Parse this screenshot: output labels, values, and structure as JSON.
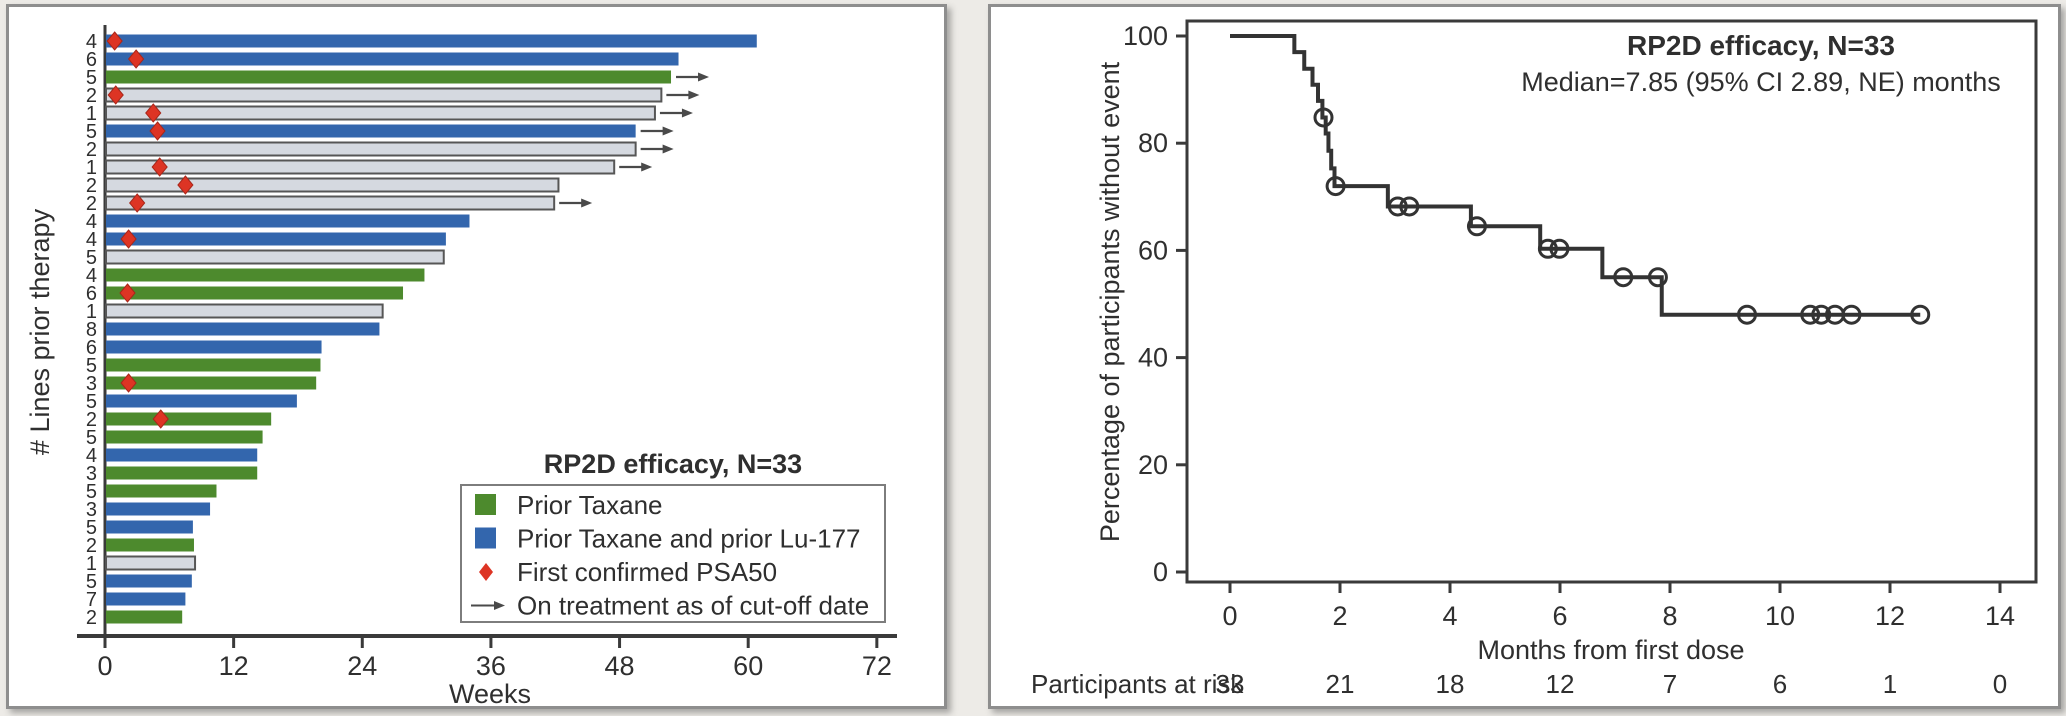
{
  "page": {
    "background": "#edebe7",
    "panel_bg": "#ffffff",
    "panel_border": "#8e8e8e"
  },
  "chart_data": [
    {
      "id": "swimmer-plot",
      "type": "bar",
      "orientation": "horizontal",
      "xlabel": "Weeks",
      "ylabel": "# Lines prior therapy",
      "x_ticks": [
        0,
        12,
        24,
        36,
        48,
        60,
        72
      ],
      "xlim": [
        0,
        75
      ],
      "grid": false,
      "axis_color": "#3a3a3a",
      "colors": {
        "prior_taxane": "#4d8a2d",
        "prior_taxane_lu177": "#3366ad",
        "other_fill": "#d5d9e0",
        "other_stroke": "#565656",
        "psa50": "#dd3424",
        "psa50_edge": "#a8271a",
        "arrow": "#4a4a4a"
      },
      "legend": {
        "title": "RP2D efficacy, N=33",
        "position": "lower-right",
        "items": [
          {
            "swatch": "green-square",
            "label": "Prior Taxane",
            "color": "#4d8a2d"
          },
          {
            "swatch": "blue-square",
            "label": "Prior Taxane and prior Lu-177",
            "color": "#3366ad"
          },
          {
            "swatch": "red-diamond",
            "label": "First confirmed PSA50",
            "color": "#dd3424"
          },
          {
            "swatch": "arrow",
            "label": "On treatment as of cut-off date",
            "color": "#4a4a4a"
          }
        ]
      },
      "bars": [
        {
          "lines_prior_therapy": 4,
          "weeks": 60.8,
          "group": "taxane_lu177",
          "psa50_week": 0.9,
          "ongoing": false
        },
        {
          "lines_prior_therapy": 6,
          "weeks": 53.5,
          "group": "taxane_lu177",
          "psa50_week": 2.9,
          "ongoing": false
        },
        {
          "lines_prior_therapy": 5,
          "weeks": 52.8,
          "group": "taxane",
          "psa50_week": null,
          "ongoing": true
        },
        {
          "lines_prior_therapy": 2,
          "weeks": 51.9,
          "group": "other",
          "psa50_week": 1.0,
          "ongoing": true
        },
        {
          "lines_prior_therapy": 1,
          "weeks": 51.3,
          "group": "other",
          "psa50_week": 4.5,
          "ongoing": true
        },
        {
          "lines_prior_therapy": 5,
          "weeks": 49.5,
          "group": "taxane_lu177",
          "psa50_week": 4.9,
          "ongoing": true
        },
        {
          "lines_prior_therapy": 2,
          "weeks": 49.5,
          "group": "other",
          "psa50_week": null,
          "ongoing": true
        },
        {
          "lines_prior_therapy": 1,
          "weeks": 47.5,
          "group": "other",
          "psa50_week": 5.1,
          "ongoing": true
        },
        {
          "lines_prior_therapy": 2,
          "weeks": 42.3,
          "group": "other",
          "psa50_week": 7.5,
          "ongoing": false
        },
        {
          "lines_prior_therapy": 2,
          "weeks": 41.9,
          "group": "other",
          "psa50_week": 3.0,
          "ongoing": true
        },
        {
          "lines_prior_therapy": 4,
          "weeks": 34.0,
          "group": "taxane_lu177",
          "psa50_week": null,
          "ongoing": false
        },
        {
          "lines_prior_therapy": 4,
          "weeks": 31.8,
          "group": "taxane_lu177",
          "psa50_week": 2.2,
          "ongoing": false
        },
        {
          "lines_prior_therapy": 5,
          "weeks": 31.6,
          "group": "other",
          "psa50_week": null,
          "ongoing": false
        },
        {
          "lines_prior_therapy": 4,
          "weeks": 29.8,
          "group": "taxane",
          "psa50_week": null,
          "ongoing": false
        },
        {
          "lines_prior_therapy": 6,
          "weeks": 27.8,
          "group": "taxane",
          "psa50_week": 2.1,
          "ongoing": false
        },
        {
          "lines_prior_therapy": 1,
          "weeks": 25.9,
          "group": "other",
          "psa50_week": null,
          "ongoing": false
        },
        {
          "lines_prior_therapy": 8,
          "weeks": 25.6,
          "group": "taxane_lu177",
          "psa50_week": null,
          "ongoing": false
        },
        {
          "lines_prior_therapy": 6,
          "weeks": 20.2,
          "group": "taxane_lu177",
          "psa50_week": null,
          "ongoing": false
        },
        {
          "lines_prior_therapy": 5,
          "weeks": 20.1,
          "group": "taxane",
          "psa50_week": null,
          "ongoing": false
        },
        {
          "lines_prior_therapy": 3,
          "weeks": 19.7,
          "group": "taxane",
          "psa50_week": 2.2,
          "ongoing": false
        },
        {
          "lines_prior_therapy": 5,
          "weeks": 17.9,
          "group": "taxane_lu177",
          "psa50_week": null,
          "ongoing": false
        },
        {
          "lines_prior_therapy": 2,
          "weeks": 15.5,
          "group": "taxane",
          "psa50_week": 5.2,
          "ongoing": false
        },
        {
          "lines_prior_therapy": 5,
          "weeks": 14.7,
          "group": "taxane",
          "psa50_week": null,
          "ongoing": false
        },
        {
          "lines_prior_therapy": 4,
          "weeks": 14.2,
          "group": "taxane_lu177",
          "psa50_week": null,
          "ongoing": false
        },
        {
          "lines_prior_therapy": 3,
          "weeks": 14.2,
          "group": "taxane",
          "psa50_week": null,
          "ongoing": false
        },
        {
          "lines_prior_therapy": 5,
          "weeks": 10.4,
          "group": "taxane",
          "psa50_week": null,
          "ongoing": false
        },
        {
          "lines_prior_therapy": 3,
          "weeks": 9.8,
          "group": "taxane_lu177",
          "psa50_week": null,
          "ongoing": false
        },
        {
          "lines_prior_therapy": 5,
          "weeks": 8.2,
          "group": "taxane_lu177",
          "psa50_week": null,
          "ongoing": false
        },
        {
          "lines_prior_therapy": 2,
          "weeks": 8.3,
          "group": "taxane",
          "psa50_week": null,
          "ongoing": false
        },
        {
          "lines_prior_therapy": 1,
          "weeks": 8.4,
          "group": "other",
          "psa50_week": null,
          "ongoing": false
        },
        {
          "lines_prior_therapy": 5,
          "weeks": 8.1,
          "group": "taxane_lu177",
          "psa50_week": null,
          "ongoing": false
        },
        {
          "lines_prior_therapy": 7,
          "weeks": 7.5,
          "group": "taxane_lu177",
          "psa50_week": null,
          "ongoing": false
        },
        {
          "lines_prior_therapy": 2,
          "weeks": 7.2,
          "group": "taxane",
          "psa50_week": null,
          "ongoing": false
        }
      ]
    },
    {
      "id": "km-plot",
      "type": "line",
      "subtype": "kaplan-meier-step",
      "title": "RP2D efficacy, N=33",
      "subtitle": "Median=7.85 (95% CI 2.89, NE) months",
      "xlabel": "Months from first dose",
      "ylabel": "Percentage of participants without event",
      "x_ticks": [
        0,
        2,
        4,
        6,
        8,
        10,
        12,
        14
      ],
      "y_ticks": [
        0,
        20,
        40,
        60,
        80,
        100
      ],
      "xlim": [
        0,
        15
      ],
      "ylim": [
        0,
        100
      ],
      "grid": false,
      "frame": true,
      "curve_color": "#333333",
      "axis_color": "#3a3a3a",
      "steps": [
        [
          0,
          100
        ],
        [
          1.17,
          97.0
        ],
        [
          1.35,
          93.9
        ],
        [
          1.5,
          90.9
        ],
        [
          1.6,
          87.9
        ],
        [
          1.68,
          84.8
        ],
        [
          1.74,
          81.8
        ],
        [
          1.79,
          78.6
        ],
        [
          1.84,
          75.3
        ],
        [
          1.9,
          72.0
        ],
        [
          2.87,
          68.2
        ],
        [
          4.38,
          64.5
        ],
        [
          5.64,
          60.3
        ],
        [
          6.77,
          55.0
        ],
        [
          7.85,
          48.0
        ]
      ],
      "end_time": 12.55,
      "censor_marks": [
        [
          1.7,
          84.8
        ],
        [
          1.92,
          72.0
        ],
        [
          3.05,
          68.2
        ],
        [
          3.26,
          68.2
        ],
        [
          4.49,
          64.5
        ],
        [
          5.78,
          60.3
        ],
        [
          5.99,
          60.3
        ],
        [
          7.15,
          55.0
        ],
        [
          7.78,
          55.0
        ],
        [
          9.4,
          48.0
        ],
        [
          10.55,
          48.0
        ],
        [
          10.75,
          48.0
        ],
        [
          11.0,
          48.0
        ],
        [
          11.3,
          48.0
        ],
        [
          12.55,
          48.0
        ]
      ],
      "risk_table": {
        "label": "Participants at risk",
        "times": [
          0,
          2,
          4,
          6,
          8,
          10,
          12,
          14
        ],
        "counts": [
          33,
          21,
          18,
          12,
          7,
          6,
          1,
          0
        ]
      }
    }
  ]
}
